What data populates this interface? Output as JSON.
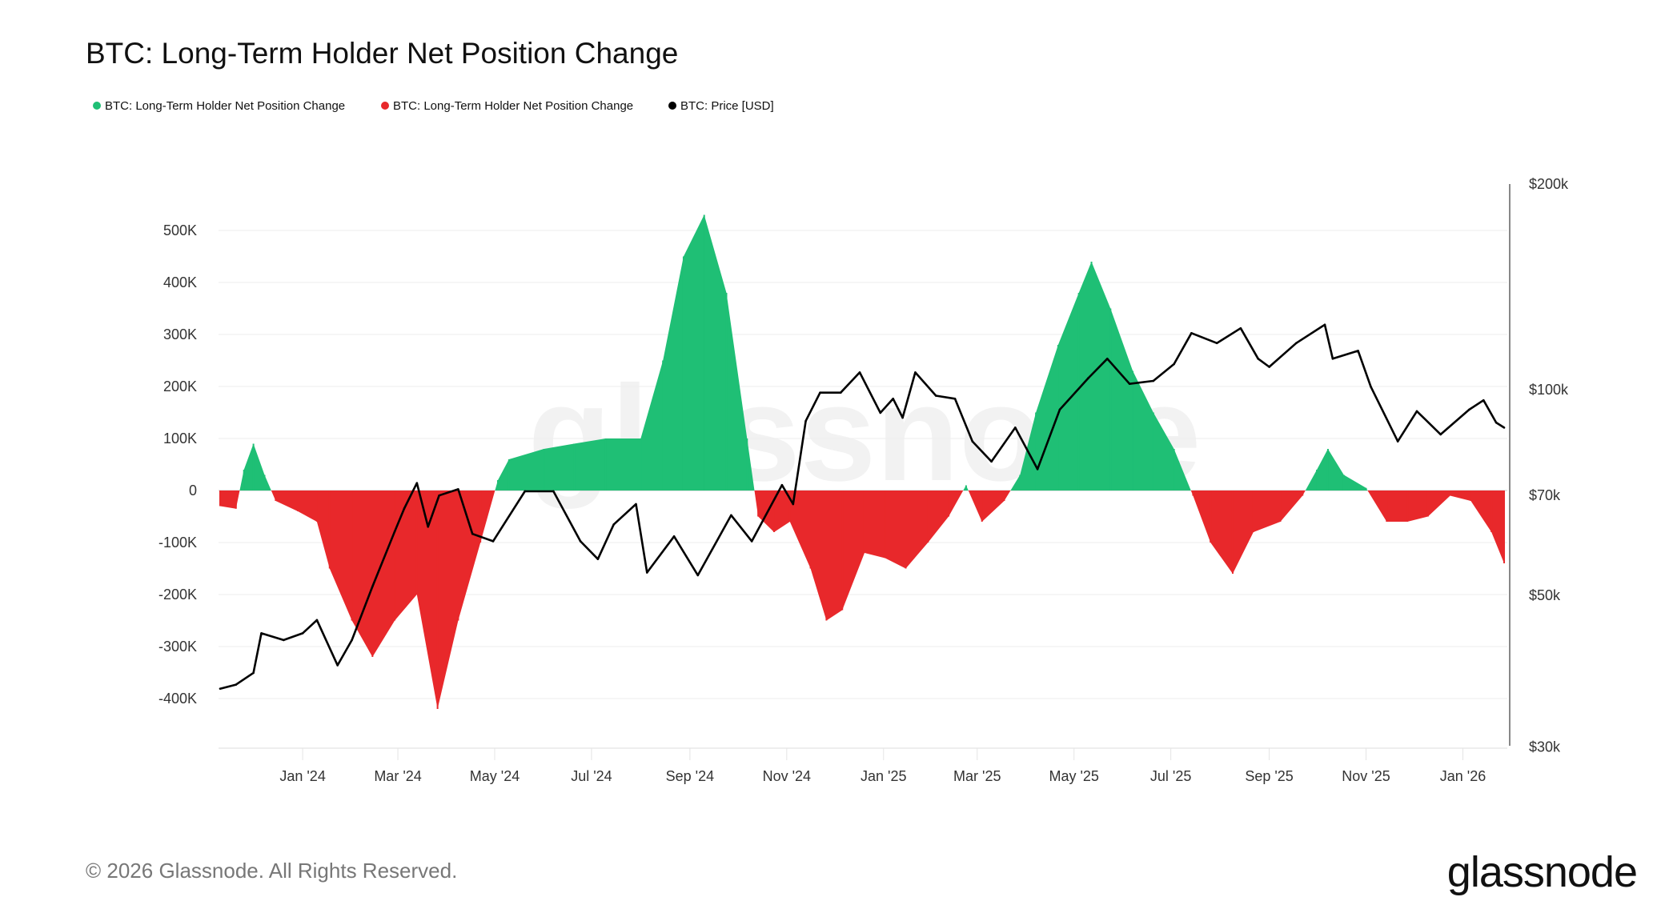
{
  "chart_data": {
    "type": "area",
    "title": "BTC: Long-Term Holder Net Position Change",
    "legend": [
      {
        "label": "BTC: Long-Term Holder Net Position Change",
        "color": "#1fbf75"
      },
      {
        "label": "BTC: Long-Term Holder Net Position Change",
        "color": "#e8282b"
      },
      {
        "label": "BTC: Price [USD]",
        "color": "#000000"
      }
    ],
    "legend_placement": "top-left",
    "x_range": [
      "2023-11-09",
      "2026-01-29"
    ],
    "x_ticks": [
      {
        "date": "2024-01-01",
        "label": "Jan '24"
      },
      {
        "date": "2024-03-01",
        "label": "Mar '24"
      },
      {
        "date": "2024-05-01",
        "label": "May '24"
      },
      {
        "date": "2024-07-01",
        "label": "Jul '24"
      },
      {
        "date": "2024-09-01",
        "label": "Sep '24"
      },
      {
        "date": "2024-11-01",
        "label": "Nov '24"
      },
      {
        "date": "2025-01-01",
        "label": "Jan '25"
      },
      {
        "date": "2025-03-01",
        "label": "Mar '25"
      },
      {
        "date": "2025-05-01",
        "label": "May '25"
      },
      {
        "date": "2025-07-01",
        "label": "Jul '25"
      },
      {
        "date": "2025-09-01",
        "label": "Sep '25"
      },
      {
        "date": "2025-11-01",
        "label": "Nov '25"
      },
      {
        "date": "2026-01-01",
        "label": "Jan '26"
      }
    ],
    "y_left": {
      "scale": "linear",
      "range": [
        -490000,
        500000
      ],
      "ticks": [
        {
          "v": 500000,
          "label": "500K"
        },
        {
          "v": 400000,
          "label": "400K"
        },
        {
          "v": 300000,
          "label": "300K"
        },
        {
          "v": 200000,
          "label": "200K"
        },
        {
          "v": 100000,
          "label": "100K"
        },
        {
          "v": 0,
          "label": "0"
        },
        {
          "v": -100000,
          "label": "-100K"
        },
        {
          "v": -200000,
          "label": "-200K"
        },
        {
          "v": -300000,
          "label": "-300K"
        },
        {
          "v": -400000,
          "label": "-400K"
        }
      ],
      "grid": true
    },
    "y_right": {
      "scale": "log",
      "range": [
        30000,
        200000
      ],
      "ticks": [
        {
          "v": 200000,
          "label": "$200k"
        },
        {
          "v": 100000,
          "label": "$100k"
        },
        {
          "v": 70000,
          "label": "$70k"
        },
        {
          "v": 50000,
          "label": "$50k"
        },
        {
          "v": 30000,
          "label": "$30k"
        }
      ]
    },
    "positive_color": "#1fbf75",
    "negative_color": "#e8282b",
    "price_color": "#000000",
    "lth_net_position_change": [
      [
        "2023-11-10",
        -30000
      ],
      [
        "2023-11-20",
        -35000
      ],
      [
        "2023-11-25",
        40000
      ],
      [
        "2023-12-01",
        90000
      ],
      [
        "2023-12-08",
        30000
      ],
      [
        "2023-12-15",
        -20000
      ],
      [
        "2023-12-29",
        -40000
      ],
      [
        "2024-01-10",
        -60000
      ],
      [
        "2024-01-18",
        -150000
      ],
      [
        "2024-02-01",
        -250000
      ],
      [
        "2024-02-14",
        -320000
      ],
      [
        "2024-02-28",
        -250000
      ],
      [
        "2024-03-13",
        -200000
      ],
      [
        "2024-03-26",
        -420000
      ],
      [
        "2024-04-08",
        -250000
      ],
      [
        "2024-04-22",
        -100000
      ],
      [
        "2024-05-03",
        20000
      ],
      [
        "2024-05-10",
        60000
      ],
      [
        "2024-06-01",
        80000
      ],
      [
        "2024-06-20",
        90000
      ],
      [
        "2024-07-10",
        100000
      ],
      [
        "2024-08-01",
        100000
      ],
      [
        "2024-08-15",
        250000
      ],
      [
        "2024-08-28",
        450000
      ],
      [
        "2024-09-10",
        530000
      ],
      [
        "2024-09-24",
        380000
      ],
      [
        "2024-10-07",
        100000
      ],
      [
        "2024-10-14",
        -50000
      ],
      [
        "2024-10-24",
        -80000
      ],
      [
        "2024-11-03",
        -60000
      ],
      [
        "2024-11-16",
        -150000
      ],
      [
        "2024-11-26",
        -250000
      ],
      [
        "2024-12-06",
        -230000
      ],
      [
        "2024-12-20",
        -120000
      ],
      [
        "2025-01-02",
        -130000
      ],
      [
        "2025-01-15",
        -150000
      ],
      [
        "2025-01-29",
        -100000
      ],
      [
        "2025-02-11",
        -50000
      ],
      [
        "2025-02-22",
        10000
      ],
      [
        "2025-03-04",
        -60000
      ],
      [
        "2025-03-18",
        -20000
      ],
      [
        "2025-03-28",
        30000
      ],
      [
        "2025-04-07",
        150000
      ],
      [
        "2025-04-21",
        280000
      ],
      [
        "2025-05-04",
        380000
      ],
      [
        "2025-05-12",
        440000
      ],
      [
        "2025-05-24",
        350000
      ],
      [
        "2025-06-07",
        230000
      ],
      [
        "2025-06-20",
        150000
      ],
      [
        "2025-07-03",
        80000
      ],
      [
        "2025-07-15",
        -10000
      ],
      [
        "2025-07-26",
        -100000
      ],
      [
        "2025-08-09",
        -160000
      ],
      [
        "2025-08-22",
        -80000
      ],
      [
        "2025-09-08",
        -60000
      ],
      [
        "2025-09-22",
        -10000
      ],
      [
        "2025-10-01",
        40000
      ],
      [
        "2025-10-08",
        80000
      ],
      [
        "2025-10-18",
        30000
      ],
      [
        "2025-11-01",
        5000
      ],
      [
        "2025-11-14",
        -60000
      ],
      [
        "2025-11-27",
        -60000
      ],
      [
        "2025-12-10",
        -50000
      ],
      [
        "2025-12-24",
        -10000
      ],
      [
        "2026-01-06",
        -20000
      ],
      [
        "2026-01-19",
        -80000
      ],
      [
        "2026-01-27",
        -140000
      ]
    ],
    "price_usd": [
      [
        "2023-11-10",
        36500
      ],
      [
        "2023-11-20",
        37000
      ],
      [
        "2023-12-01",
        38500
      ],
      [
        "2023-12-06",
        44000
      ],
      [
        "2023-12-20",
        43000
      ],
      [
        "2024-01-01",
        44000
      ],
      [
        "2024-01-10",
        46000
      ],
      [
        "2024-01-23",
        39500
      ],
      [
        "2024-02-01",
        43000
      ],
      [
        "2024-02-14",
        51500
      ],
      [
        "2024-02-28",
        62000
      ],
      [
        "2024-03-05",
        67000
      ],
      [
        "2024-03-13",
        73000
      ],
      [
        "2024-03-20",
        63000
      ],
      [
        "2024-03-27",
        70000
      ],
      [
        "2024-04-08",
        71500
      ],
      [
        "2024-04-17",
        61500
      ],
      [
        "2024-04-30",
        60000
      ],
      [
        "2024-05-20",
        71000
      ],
      [
        "2024-06-07",
        71000
      ],
      [
        "2024-06-24",
        60000
      ],
      [
        "2024-07-05",
        56500
      ],
      [
        "2024-07-15",
        63500
      ],
      [
        "2024-07-29",
        68000
      ],
      [
        "2024-08-05",
        54000
      ],
      [
        "2024-08-22",
        61000
      ],
      [
        "2024-09-06",
        53500
      ],
      [
        "2024-09-27",
        65500
      ],
      [
        "2024-10-10",
        60000
      ],
      [
        "2024-10-29",
        72500
      ],
      [
        "2024-11-05",
        68000
      ],
      [
        "2024-11-13",
        90000
      ],
      [
        "2024-11-22",
        99000
      ],
      [
        "2024-12-05",
        99000
      ],
      [
        "2024-12-17",
        106000
      ],
      [
        "2024-12-30",
        92500
      ],
      [
        "2025-01-07",
        97000
      ],
      [
        "2025-01-13",
        91000
      ],
      [
        "2025-01-21",
        106000
      ],
      [
        "2025-02-03",
        98000
      ],
      [
        "2025-02-15",
        97000
      ],
      [
        "2025-02-26",
        84000
      ],
      [
        "2025-03-10",
        78500
      ],
      [
        "2025-03-25",
        88000
      ],
      [
        "2025-04-08",
        76500
      ],
      [
        "2025-04-22",
        93500
      ],
      [
        "2025-05-10",
        104000
      ],
      [
        "2025-05-22",
        111000
      ],
      [
        "2025-06-05",
        102000
      ],
      [
        "2025-06-20",
        103000
      ],
      [
        "2025-07-03",
        109000
      ],
      [
        "2025-07-14",
        121000
      ],
      [
        "2025-07-30",
        117000
      ],
      [
        "2025-08-14",
        123000
      ],
      [
        "2025-08-25",
        111000
      ],
      [
        "2025-09-01",
        108000
      ],
      [
        "2025-09-18",
        117000
      ],
      [
        "2025-10-06",
        124500
      ],
      [
        "2025-10-11",
        111000
      ],
      [
        "2025-10-27",
        114000
      ],
      [
        "2025-11-04",
        101000
      ],
      [
        "2025-11-21",
        84000
      ],
      [
        "2025-12-03",
        93000
      ],
      [
        "2025-12-18",
        86000
      ],
      [
        "2026-01-05",
        93500
      ],
      [
        "2026-01-14",
        96500
      ],
      [
        "2026-01-22",
        89500
      ],
      [
        "2026-01-27",
        88000
      ]
    ]
  },
  "footer": {
    "copyright": "© 2026 Glassnode. All Rights Reserved.",
    "logo": "glassnode",
    "watermark": "glassnode"
  }
}
